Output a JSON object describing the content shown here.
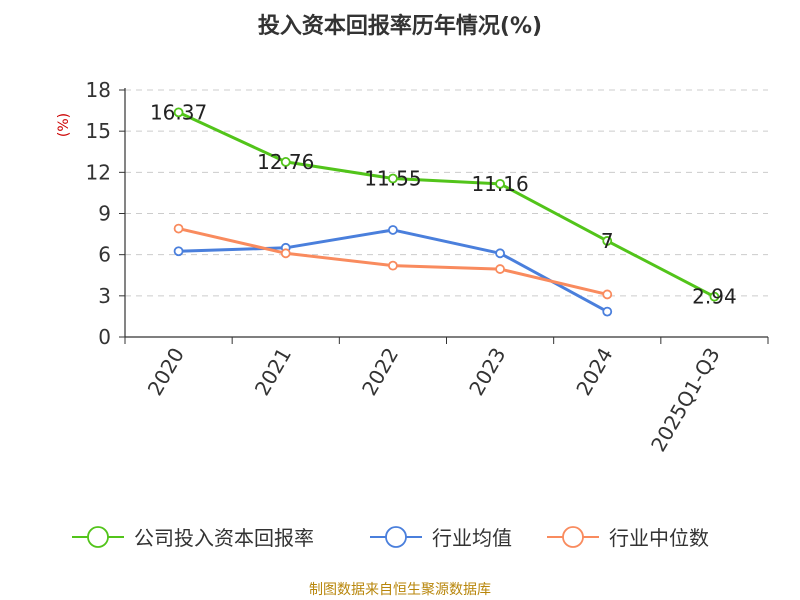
{
  "chart_data": {
    "type": "line",
    "title": "投入资本回报率历年情况(%)",
    "ylabel": "(%)",
    "xlabel": "",
    "categories": [
      "2020",
      "2021",
      "2022",
      "2023",
      "2024",
      "2025Q1-Q3"
    ],
    "ylim": [
      0,
      18
    ],
    "yticks": [
      0,
      3,
      6,
      9,
      12,
      15,
      18
    ],
    "grid": true,
    "legend_position": "bottom",
    "series": [
      {
        "name": "公司投入资本回报率",
        "color": "#52c41a",
        "values": [
          16.37,
          12.76,
          11.55,
          11.16,
          7,
          2.94
        ],
        "labels": [
          "16.37",
          "12.76",
          "11.55",
          "11.16",
          "7",
          "2.94"
        ]
      },
      {
        "name": "行业均值",
        "color": "#4a7fdc",
        "values": [
          6.25,
          6.5,
          7.8,
          6.1,
          1.85,
          null
        ]
      },
      {
        "name": "行业中位数",
        "color": "#f98b5e",
        "values": [
          7.9,
          6.1,
          5.2,
          4.95,
          3.1,
          null
        ]
      }
    ],
    "source": "制图数据来自恒生聚源数据库"
  }
}
